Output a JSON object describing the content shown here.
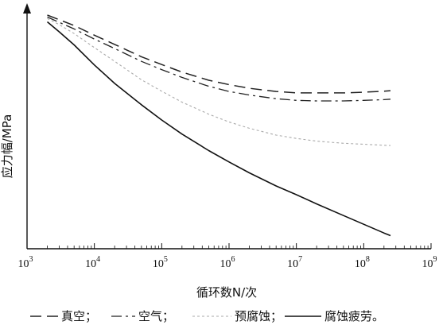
{
  "chart_data": {
    "type": "line",
    "xlabel": "循环数N/次",
    "ylabel": "应力幅/MPa",
    "x_scale": "log",
    "xlim": [
      1000,
      1000000000
    ],
    "ylim": [
      0,
      100
    ],
    "x_ticks": [
      {
        "value": 1000,
        "base": "10",
        "exp": "3"
      },
      {
        "value": 10000,
        "base": "10",
        "exp": "4"
      },
      {
        "value": 100000,
        "base": "10",
        "exp": "5"
      },
      {
        "value": 1000000,
        "base": "10",
        "exp": "6"
      },
      {
        "value": 10000000,
        "base": "10",
        "exp": "7"
      },
      {
        "value": 100000000,
        "base": "10",
        "exp": "8"
      },
      {
        "value": 1000000000,
        "base": "10",
        "exp": "9"
      }
    ],
    "x": [
      2000,
      3000,
      5000,
      10000,
      20000,
      50000,
      100000,
      200000,
      500000,
      1000000,
      2000000,
      5000000,
      10000000,
      20000000,
      50000000,
      100000000,
      200000000,
      250000000
    ],
    "series": [
      {
        "name": "真空",
        "style": "dashed",
        "color": "#222222",
        "values": [
          96.4,
          94.5,
          92.1,
          88.1,
          84.3,
          79.2,
          76.0,
          72.9,
          69.5,
          67.7,
          66.2,
          64.9,
          64.3,
          64.3,
          64.3,
          64.6,
          65.0,
          65.2
        ]
      },
      {
        "name": "空气",
        "style": "dashdot",
        "color": "#222222",
        "values": [
          95.6,
          93.4,
          90.7,
          86.5,
          82.6,
          77.3,
          73.9,
          70.7,
          67.0,
          64.9,
          63.4,
          61.9,
          61.2,
          61.0,
          61.0,
          61.2,
          61.5,
          61.7
        ]
      },
      {
        "name": "预腐蚀",
        "style": "dotted",
        "color": "#aaaaaa",
        "values": [
          95.0,
          92.5,
          88.8,
          83.0,
          77.3,
          69.7,
          65.0,
          60.5,
          55.5,
          52.3,
          49.7,
          46.9,
          45.5,
          44.4,
          43.5,
          43.1,
          42.7,
          42.6
        ]
      },
      {
        "name": "腐蚀疲劳",
        "style": "solid",
        "color": "#111111",
        "values": [
          93.6,
          89.5,
          84.1,
          75.8,
          68.2,
          59.4,
          53.1,
          47.3,
          40.5,
          35.8,
          31.3,
          25.9,
          22.3,
          18.5,
          13.7,
          10.1,
          6.5,
          5.4
        ]
      }
    ],
    "legend_position": "bottom",
    "legend": {
      "items": [
        "真空；",
        "空气；",
        "预腐蚀；",
        "腐蚀疲劳。"
      ]
    },
    "grid": false
  }
}
